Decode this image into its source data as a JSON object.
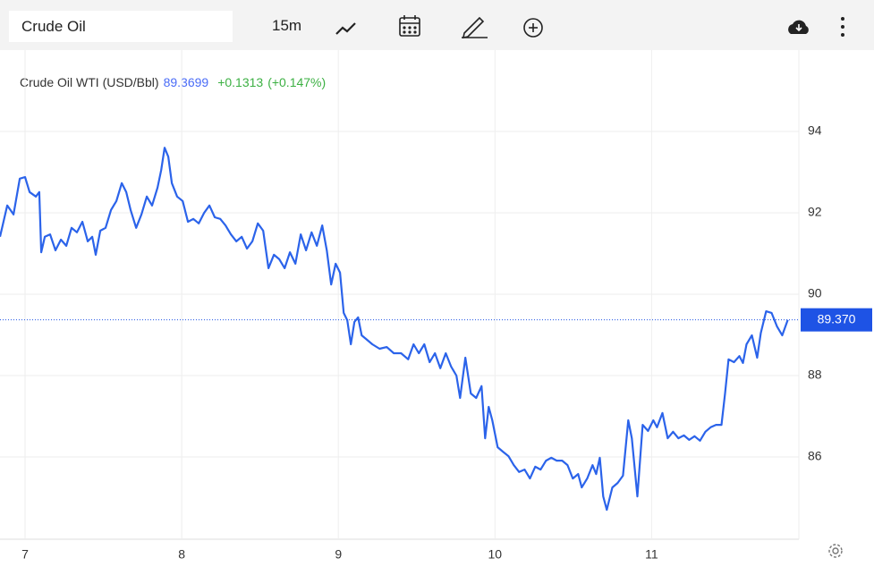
{
  "toolbar": {
    "symbol": "Crude Oil",
    "interval": "15m"
  },
  "chart_data": {
    "type": "line",
    "header": {
      "last": "89.3699",
      "change": "+0.1313",
      "change_pct": "(+0.147%)"
    },
    "x": [
      6.84,
      6.886,
      6.926,
      6.966,
      7.0,
      7.029,
      7.069,
      7.091,
      7.103,
      7.126,
      7.16,
      7.194,
      7.229,
      7.263,
      7.297,
      7.331,
      7.366,
      7.4,
      7.429,
      7.451,
      7.48,
      7.514,
      7.549,
      7.583,
      7.617,
      7.646,
      7.674,
      7.709,
      7.743,
      7.777,
      7.811,
      7.846,
      7.869,
      7.891,
      7.914,
      7.937,
      7.971,
      8.006,
      8.04,
      8.074,
      8.109,
      8.143,
      8.177,
      8.211,
      8.246,
      8.28,
      8.314,
      8.349,
      8.383,
      8.417,
      8.451,
      8.486,
      8.52,
      8.554,
      8.589,
      8.623,
      8.657,
      8.691,
      8.726,
      8.76,
      8.794,
      8.829,
      8.863,
      8.897,
      8.926,
      8.954,
      8.983,
      9.011,
      9.034,
      9.057,
      9.08,
      9.103,
      9.126,
      9.149,
      9.183,
      9.217,
      9.263,
      9.309,
      9.354,
      9.4,
      9.446,
      9.48,
      9.514,
      9.549,
      9.583,
      9.617,
      9.651,
      9.686,
      9.72,
      9.754,
      9.777,
      9.811,
      9.846,
      9.88,
      9.914,
      9.937,
      9.96,
      9.983,
      10.017,
      10.051,
      10.086,
      10.12,
      10.154,
      10.189,
      10.223,
      10.257,
      10.291,
      10.326,
      10.36,
      10.394,
      10.429,
      10.463,
      10.497,
      10.531,
      10.554,
      10.589,
      10.623,
      10.646,
      10.669,
      10.691,
      10.714,
      10.749,
      10.783,
      10.817,
      10.851,
      10.874,
      10.909,
      10.943,
      10.977,
      11.011,
      11.034,
      11.069,
      11.103,
      11.137,
      11.171,
      11.206,
      11.24,
      11.274,
      11.309,
      11.343,
      11.377,
      11.411,
      11.446,
      11.469,
      11.491,
      11.526,
      11.56,
      11.583,
      11.606,
      11.64,
      11.674,
      11.697,
      11.731,
      11.766,
      11.8,
      11.834,
      11.869
    ],
    "series": [
      {
        "name": "Crude Oil WTI (USD/Bbl)",
        "color": "#2b63ea",
        "values": [
          91.41,
          92.18,
          91.96,
          92.84,
          92.88,
          92.51,
          92.4,
          92.51,
          91.03,
          91.41,
          91.47,
          91.08,
          91.34,
          91.19,
          91.63,
          91.52,
          91.78,
          91.3,
          91.41,
          90.97,
          91.56,
          91.63,
          92.07,
          92.29,
          92.73,
          92.51,
          92.07,
          91.63,
          91.96,
          92.4,
          92.18,
          92.62,
          93.05,
          93.6,
          93.38,
          92.73,
          92.4,
          92.29,
          91.78,
          91.85,
          91.74,
          92.0,
          92.18,
          91.89,
          91.85,
          91.69,
          91.47,
          91.3,
          91.41,
          91.12,
          91.3,
          91.74,
          91.56,
          90.64,
          90.97,
          90.86,
          90.64,
          91.03,
          90.75,
          91.47,
          91.08,
          91.52,
          91.19,
          91.69,
          91.08,
          90.24,
          90.75,
          90.53,
          89.54,
          89.36,
          88.77,
          89.32,
          89.43,
          88.99,
          88.88,
          88.77,
          88.66,
          88.7,
          88.55,
          88.55,
          88.4,
          88.77,
          88.55,
          88.77,
          88.33,
          88.55,
          88.18,
          88.55,
          88.22,
          88.0,
          87.45,
          88.44,
          87.56,
          87.45,
          87.74,
          86.46,
          87.23,
          86.9,
          86.24,
          86.13,
          86.02,
          85.8,
          85.63,
          85.69,
          85.47,
          85.76,
          85.69,
          85.91,
          85.98,
          85.91,
          85.91,
          85.8,
          85.47,
          85.58,
          85.25,
          85.47,
          85.8,
          85.58,
          85.98,
          85.03,
          84.7,
          85.25,
          85.36,
          85.54,
          86.9,
          86.46,
          85.03,
          86.79,
          86.64,
          86.9,
          86.73,
          87.08,
          86.46,
          86.62,
          86.46,
          86.53,
          86.42,
          86.51,
          86.4,
          86.62,
          86.73,
          86.79,
          86.79,
          87.56,
          88.4,
          88.33,
          88.48,
          88.31,
          88.77,
          88.99,
          88.44,
          89.05,
          89.58,
          89.54,
          89.21,
          88.99,
          89.3699
        ]
      }
    ],
    "price_line": {
      "value": 89.3699,
      "label": "89.370",
      "color": "#1e53e5"
    },
    "xlim": [
      6.84,
      11.94
    ],
    "xticks": [
      7,
      8,
      9,
      10,
      11
    ],
    "ylim": [
      84,
      96
    ],
    "yticks": [
      86,
      88,
      90,
      92,
      94
    ],
    "grid": true
  }
}
